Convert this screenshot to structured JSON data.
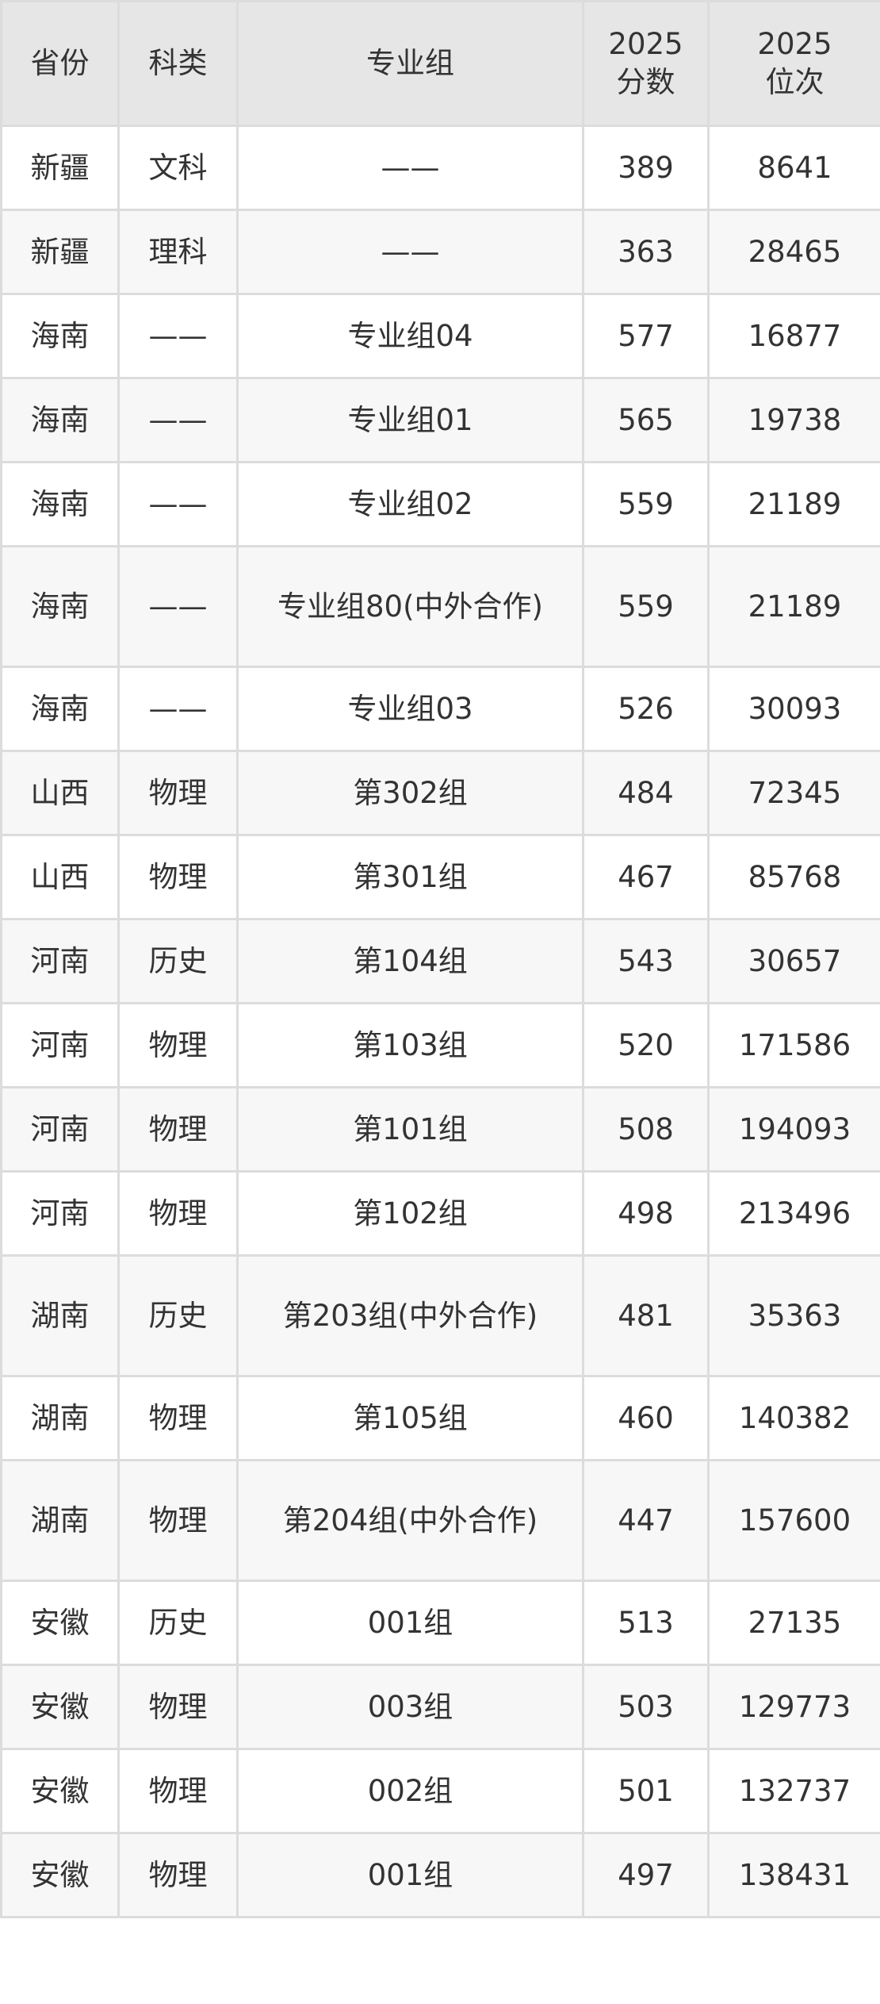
{
  "table": {
    "headers": [
      "省份",
      "科类",
      "专业组",
      "2025\n分数",
      "2025\n位次"
    ],
    "rows": [
      [
        "新疆",
        "文科",
        "——",
        "389",
        "8641"
      ],
      [
        "新疆",
        "理科",
        "——",
        "363",
        "28465"
      ],
      [
        "海南",
        "——",
        "专业组04",
        "577",
        "16877"
      ],
      [
        "海南",
        "——",
        "专业组01",
        "565",
        "19738"
      ],
      [
        "海南",
        "——",
        "专业组02",
        "559",
        "21189"
      ],
      [
        "海南",
        "——",
        "专业组80(中外合作)",
        "559",
        "21189"
      ],
      [
        "海南",
        "——",
        "专业组03",
        "526",
        "30093"
      ],
      [
        "山西",
        "物理",
        "第302组",
        "484",
        "72345"
      ],
      [
        "山西",
        "物理",
        "第301组",
        "467",
        "85768"
      ],
      [
        "河南",
        "历史",
        "第104组",
        "543",
        "30657"
      ],
      [
        "河南",
        "物理",
        "第103组",
        "520",
        "171586"
      ],
      [
        "河南",
        "物理",
        "第101组",
        "508",
        "194093"
      ],
      [
        "河南",
        "物理",
        "第102组",
        "498",
        "213496"
      ],
      [
        "湖南",
        "历史",
        "第203组(中外合作)",
        "481",
        "35363"
      ],
      [
        "湖南",
        "物理",
        "第105组",
        "460",
        "140382"
      ],
      [
        "湖南",
        "物理",
        "第204组(中外合作)",
        "447",
        "157600"
      ],
      [
        "安徽",
        "历史",
        "001组",
        "513",
        "27135"
      ],
      [
        "安徽",
        "物理",
        "003组",
        "503",
        "129773"
      ],
      [
        "安徽",
        "物理",
        "002组",
        "501",
        "132737"
      ],
      [
        "安徽",
        "物理",
        "001组",
        "497",
        "138431"
      ]
    ]
  }
}
